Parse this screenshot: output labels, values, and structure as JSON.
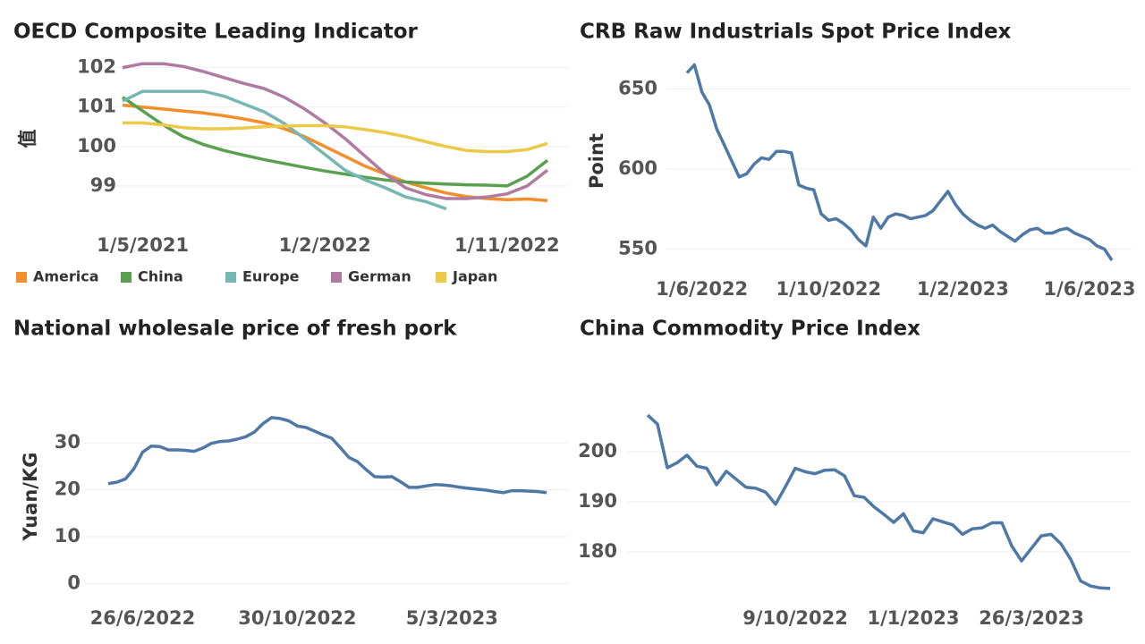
{
  "chart_data": [
    {
      "type": "line",
      "title": "OECD Composite Leading Indicator",
      "y_label": "值",
      "categories": [
        null,
        "1/5/2021",
        null,
        null,
        null,
        null,
        null,
        null,
        null,
        null,
        "1/2/2022",
        null,
        null,
        null,
        null,
        null,
        null,
        null,
        null,
        "1/11/2022",
        null,
        null
      ],
      "series": [
        {
          "name": "America",
          "color": "#f28e2b",
          "values": [
            101.05,
            101.0,
            100.95,
            100.9,
            100.85,
            100.78,
            100.7,
            100.6,
            100.45,
            100.25,
            100.0,
            99.75,
            99.5,
            99.3,
            99.1,
            98.95,
            98.82,
            98.73,
            98.68,
            98.65,
            98.67,
            98.63
          ]
        },
        {
          "name": "China",
          "color": "#59a14f",
          "values": [
            101.25,
            100.9,
            100.55,
            100.25,
            100.05,
            99.9,
            99.78,
            99.67,
            99.57,
            99.47,
            99.38,
            99.3,
            99.22,
            99.15,
            99.1,
            99.07,
            99.05,
            99.03,
            99.02,
            99.0,
            99.25,
            99.65
          ]
        },
        {
          "name": "Europe",
          "color": "#76b7b2",
          "values": [
            101.15,
            101.4,
            101.4,
            101.4,
            101.4,
            101.28,
            101.08,
            100.88,
            100.58,
            100.2,
            99.8,
            99.4,
            99.15,
            98.95,
            98.72,
            98.6,
            98.42,
            null,
            null,
            null,
            null,
            null
          ]
        },
        {
          "name": "German",
          "color": "#b07aa1",
          "values": [
            102.0,
            102.1,
            102.1,
            102.03,
            101.9,
            101.75,
            101.6,
            101.47,
            101.25,
            100.95,
            100.6,
            100.2,
            99.75,
            99.3,
            98.95,
            98.78,
            98.68,
            98.68,
            98.72,
            98.8,
            99.0,
            99.4
          ]
        },
        {
          "name": "Japan",
          "color": "#edc948",
          "values": [
            100.6,
            100.6,
            100.55,
            100.48,
            100.45,
            100.45,
            100.47,
            100.5,
            100.52,
            100.53,
            100.53,
            100.5,
            100.43,
            100.35,
            100.25,
            100.12,
            100.0,
            99.9,
            99.87,
            99.87,
            99.92,
            100.08
          ]
        }
      ],
      "ylim": [
        98,
        102.4
      ],
      "yticks": [
        99,
        100,
        101,
        102
      ],
      "grid": true,
      "legend": "bottom"
    },
    {
      "type": "line",
      "title": "CRB Raw Industrials Spot Price Index",
      "y_label": "Point",
      "color": "#4e79a7",
      "categories": [
        null,
        null,
        "1/6/2022",
        null,
        null,
        null,
        null,
        null,
        null,
        null,
        null,
        null,
        null,
        null,
        null,
        null,
        null,
        null,
        null,
        "1/10/2022",
        null,
        null,
        null,
        null,
        null,
        null,
        null,
        null,
        null,
        null,
        null,
        null,
        null,
        null,
        null,
        null,
        null,
        "1/2/2023",
        null,
        null,
        null,
        null,
        null,
        null,
        null,
        null,
        null,
        null,
        null,
        null,
        null,
        null,
        null,
        null,
        "1/6/2023",
        null,
        null,
        null
      ],
      "values": [
        660,
        665,
        648,
        640,
        625,
        615,
        605,
        595,
        597,
        603,
        607,
        606,
        611,
        611,
        610,
        590,
        588,
        587,
        572,
        568,
        569,
        566,
        562,
        556,
        552,
        570,
        563,
        570,
        572,
        571,
        569,
        570,
        571,
        574,
        580,
        586,
        578,
        572,
        568,
        565,
        563,
        565,
        561,
        558,
        555,
        559,
        562,
        563,
        560,
        560,
        562,
        563,
        560,
        558,
        556,
        552,
        550,
        543
      ],
      "ylim": [
        538,
        672
      ],
      "yticks": [
        550,
        600,
        650
      ],
      "grid": true
    },
    {
      "type": "line",
      "title": "National wholesale price of fresh pork",
      "y_label": "Yuan/KG",
      "color": "#4e79a7",
      "categories": [
        null,
        null,
        null,
        null,
        "26/6/2022",
        null,
        null,
        null,
        null,
        null,
        null,
        null,
        null,
        null,
        null,
        null,
        null,
        null,
        null,
        null,
        null,
        null,
        "30/10/2022",
        null,
        null,
        null,
        null,
        null,
        null,
        null,
        null,
        null,
        null,
        null,
        null,
        null,
        null,
        null,
        null,
        null,
        "5/3/2023",
        null,
        null,
        null,
        null,
        null,
        null,
        null,
        null,
        null,
        null,
        null
      ],
      "values": [
        21.3,
        21.6,
        22.3,
        24.5,
        28,
        29.3,
        29.2,
        28.5,
        28.5,
        28.4,
        28.2,
        28.9,
        29.9,
        30.3,
        30.4,
        30.8,
        31.3,
        32.3,
        34.1,
        35.4,
        35.2,
        34.7,
        33.6,
        33.3,
        32.5,
        31.7,
        31.0,
        29.0,
        26.9,
        26.0,
        24.3,
        22.8,
        22.7,
        22.8,
        21.7,
        20.5,
        20.5,
        20.8,
        21.1,
        21.0,
        20.8,
        20.5,
        20.3,
        20.1,
        19.9,
        19.6,
        19.4,
        19.8,
        19.8,
        19.7,
        19.6,
        19.4
      ],
      "ylim": [
        -3,
        39
      ],
      "yticks": [
        0,
        10,
        20,
        30
      ],
      "grid": true
    },
    {
      "type": "line",
      "title": "China Commodity Price Index",
      "color": "#4e79a7",
      "categories": [
        null,
        null,
        null,
        null,
        null,
        null,
        null,
        null,
        null,
        null,
        null,
        null,
        null,
        null,
        null,
        "9/10/2022",
        null,
        null,
        null,
        null,
        null,
        null,
        null,
        null,
        null,
        null,
        null,
        "1/1/2023",
        null,
        null,
        null,
        null,
        null,
        null,
        null,
        null,
        null,
        null,
        null,
        "26/3/2023",
        null,
        null,
        null,
        null,
        null,
        null,
        null,
        null
      ],
      "values": [
        207.3,
        205.5,
        196.8,
        197.8,
        199.3,
        197.1,
        196.7,
        193.4,
        196.1,
        194.5,
        192.9,
        192.7,
        191.9,
        189.5,
        193.0,
        196.7,
        196.0,
        195.6,
        196.3,
        196.4,
        195.2,
        191.2,
        190.9,
        189.0,
        187.5,
        185.9,
        187.6,
        184.2,
        183.8,
        186.6,
        186.0,
        185.4,
        183.5,
        184.6,
        184.8,
        185.8,
        185.8,
        181.2,
        178.2,
        180.7,
        183.2,
        183.5,
        181.6,
        178.5,
        174.2,
        173.2,
        172.8,
        172.7
      ],
      "ylim": [
        170,
        210
      ],
      "yticks": [
        180,
        190,
        200
      ],
      "grid": true
    }
  ]
}
